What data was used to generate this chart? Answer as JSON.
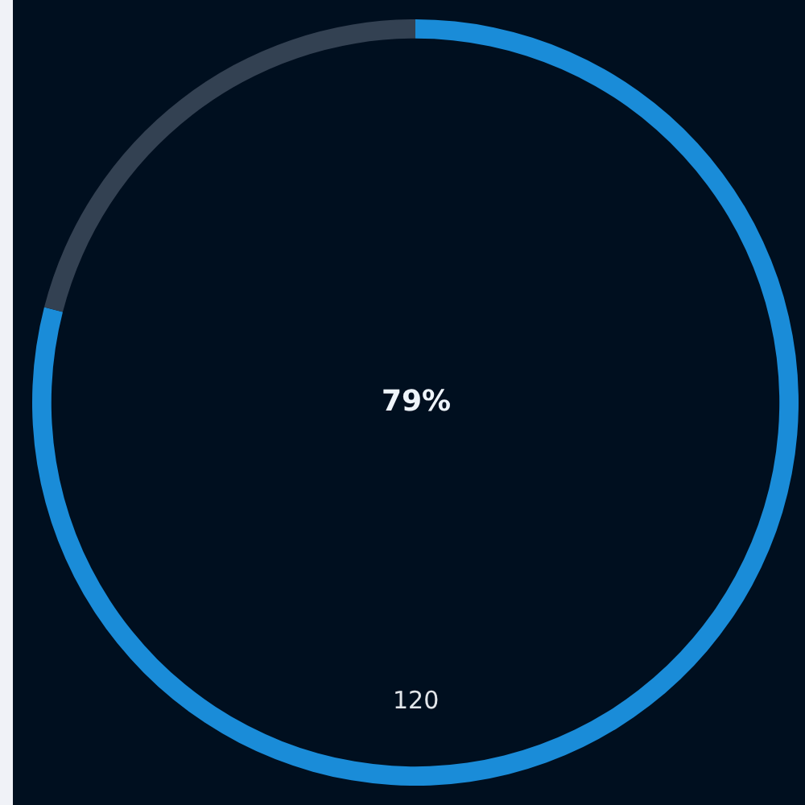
{
  "chart_data": {
    "type": "donut",
    "categories": [
      null,
      null
    ],
    "values": [
      79,
      21
    ],
    "colors": [
      "#1a8cd8",
      "#334152"
    ],
    "annotations": [
      "79%",
      "120"
    ]
  }
}
